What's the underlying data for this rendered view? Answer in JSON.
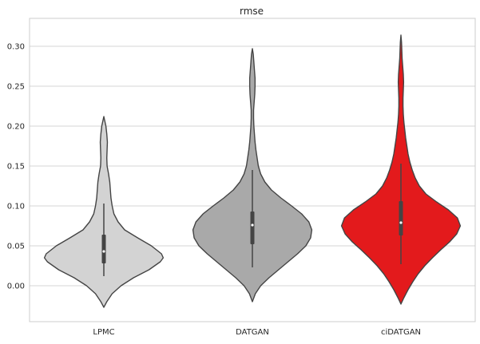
{
  "chart_data": {
    "type": "violin",
    "title": "rmse",
    "xlabel": "",
    "ylabel": "",
    "categories": [
      "LPMC",
      "DATGAN",
      "ciDATGAN"
    ],
    "ylim": [
      -0.045,
      0.335
    ],
    "yticks": [
      0.0,
      0.05,
      0.1,
      0.15,
      0.2,
      0.25,
      0.3
    ],
    "ytick_labels": [
      "0.00",
      "0.05",
      "0.10",
      "0.15",
      "0.20",
      "0.25",
      "0.30"
    ],
    "grid": "horizontal",
    "series": [
      {
        "category": "LPMC",
        "color": "#d3d3d3",
        "min": 0.012,
        "q1": 0.028,
        "median": 0.043,
        "q3": 0.064,
        "max": 0.103,
        "density": [
          [
            -0.027,
            0.0
          ],
          [
            -0.02,
            0.05
          ],
          [
            -0.01,
            0.14
          ],
          [
            0.0,
            0.29
          ],
          [
            0.01,
            0.5
          ],
          [
            0.02,
            0.76
          ],
          [
            0.03,
            0.95
          ],
          [
            0.035,
            1.0
          ],
          [
            0.04,
            0.97
          ],
          [
            0.05,
            0.8
          ],
          [
            0.06,
            0.57
          ],
          [
            0.07,
            0.35
          ],
          [
            0.08,
            0.24
          ],
          [
            0.09,
            0.17
          ],
          [
            0.1,
            0.14
          ],
          [
            0.11,
            0.12
          ],
          [
            0.12,
            0.11
          ],
          [
            0.13,
            0.1
          ],
          [
            0.14,
            0.08
          ],
          [
            0.15,
            0.055
          ],
          [
            0.16,
            0.05
          ],
          [
            0.17,
            0.055
          ],
          [
            0.18,
            0.06
          ],
          [
            0.19,
            0.05
          ],
          [
            0.2,
            0.035
          ],
          [
            0.212,
            0.0
          ]
        ]
      },
      {
        "category": "DATGAN",
        "color": "#a9a9a9",
        "min": 0.023,
        "q1": 0.052,
        "median": 0.076,
        "q3": 0.093,
        "max": 0.145,
        "density": [
          [
            -0.02,
            0.0
          ],
          [
            -0.01,
            0.05
          ],
          [
            0.0,
            0.14
          ],
          [
            0.01,
            0.28
          ],
          [
            0.02,
            0.44
          ],
          [
            0.03,
            0.6
          ],
          [
            0.04,
            0.76
          ],
          [
            0.05,
            0.9
          ],
          [
            0.06,
            0.98
          ],
          [
            0.07,
            1.0
          ],
          [
            0.08,
            0.95
          ],
          [
            0.09,
            0.83
          ],
          [
            0.1,
            0.66
          ],
          [
            0.11,
            0.48
          ],
          [
            0.12,
            0.32
          ],
          [
            0.13,
            0.21
          ],
          [
            0.14,
            0.14
          ],
          [
            0.15,
            0.1
          ],
          [
            0.16,
            0.08
          ],
          [
            0.17,
            0.06
          ],
          [
            0.18,
            0.045
          ],
          [
            0.19,
            0.035
          ],
          [
            0.2,
            0.025
          ],
          [
            0.21,
            0.02
          ],
          [
            0.22,
            0.02
          ],
          [
            0.23,
            0.03
          ],
          [
            0.24,
            0.04
          ],
          [
            0.25,
            0.045
          ],
          [
            0.26,
            0.045
          ],
          [
            0.27,
            0.035
          ],
          [
            0.28,
            0.025
          ],
          [
            0.29,
            0.015
          ],
          [
            0.297,
            0.0
          ]
        ]
      },
      {
        "category": "ciDATGAN",
        "color": "#e31a1c",
        "min": 0.027,
        "q1": 0.063,
        "median": 0.079,
        "q3": 0.106,
        "max": 0.153,
        "density": [
          [
            -0.023,
            0.0
          ],
          [
            -0.015,
            0.05
          ],
          [
            -0.005,
            0.12
          ],
          [
            0.005,
            0.2
          ],
          [
            0.015,
            0.29
          ],
          [
            0.025,
            0.4
          ],
          [
            0.035,
            0.53
          ],
          [
            0.045,
            0.67
          ],
          [
            0.055,
            0.82
          ],
          [
            0.065,
            0.94
          ],
          [
            0.075,
            1.0
          ],
          [
            0.085,
            0.95
          ],
          [
            0.095,
            0.8
          ],
          [
            0.105,
            0.6
          ],
          [
            0.115,
            0.42
          ],
          [
            0.125,
            0.31
          ],
          [
            0.135,
            0.24
          ],
          [
            0.145,
            0.19
          ],
          [
            0.155,
            0.15
          ],
          [
            0.165,
            0.12
          ],
          [
            0.175,
            0.1
          ],
          [
            0.185,
            0.08
          ],
          [
            0.195,
            0.065
          ],
          [
            0.205,
            0.05
          ],
          [
            0.215,
            0.04
          ],
          [
            0.225,
            0.035
          ],
          [
            0.235,
            0.035
          ],
          [
            0.245,
            0.04
          ],
          [
            0.255,
            0.045
          ],
          [
            0.265,
            0.04
          ],
          [
            0.275,
            0.03
          ],
          [
            0.285,
            0.02
          ],
          [
            0.295,
            0.015
          ],
          [
            0.305,
            0.01
          ],
          [
            0.314,
            0.0
          ]
        ]
      }
    ],
    "style": {
      "outline_color": "#444444",
      "grid_color": "#d4d4d4",
      "axis_color": "#cccccc",
      "box_color": "#444444",
      "median_color": "#ffffff"
    }
  }
}
